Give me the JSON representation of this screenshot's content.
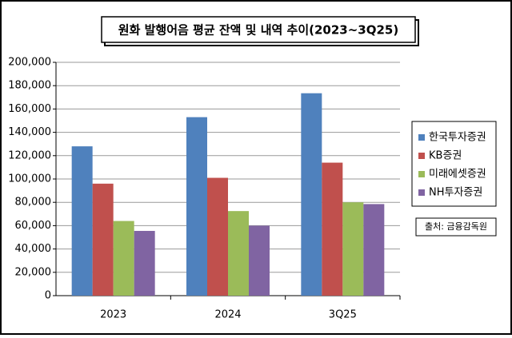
{
  "chart_data": {
    "type": "bar",
    "title": "원화 발행어음 평균 잔액 및 내역 추이(2023~3Q25)",
    "categories": [
      "2023",
      "2024",
      "3Q25"
    ],
    "series": [
      {
        "name": "한국투자증권",
        "color": "#4f81bd",
        "values": [
          128000,
          153000,
          173500
        ]
      },
      {
        "name": "KB증권",
        "color": "#c0504d",
        "values": [
          96000,
          101000,
          114000
        ]
      },
      {
        "name": "미래에셋증권",
        "color": "#9bbb59",
        "values": [
          64000,
          72500,
          80000
        ]
      },
      {
        "name": "NH투자증권",
        "color": "#8064a2",
        "values": [
          55500,
          60000,
          78500
        ]
      }
    ],
    "ylim": [
      0,
      200000
    ],
    "yticks": [
      0,
      {
        "value": 20000,
        "label": "20,000"
      },
      {
        "value": 40000,
        "label": "40,000"
      },
      {
        "value": 60000,
        "label": "60,000"
      },
      {
        "value": 80000,
        "label": "80,000"
      },
      {
        "value": 100000,
        "label": "100,000"
      },
      {
        "value": 120000,
        "label": "120,000"
      },
      {
        "value": 140000,
        "label": "140,000"
      },
      {
        "value": 160000,
        "label": "160,000"
      },
      {
        "value": 180000,
        "label": "180,000"
      },
      {
        "value": 200000,
        "label": "200,000"
      }
    ],
    "grid": true,
    "legend": "right",
    "source": "출처: 금융감독원"
  }
}
